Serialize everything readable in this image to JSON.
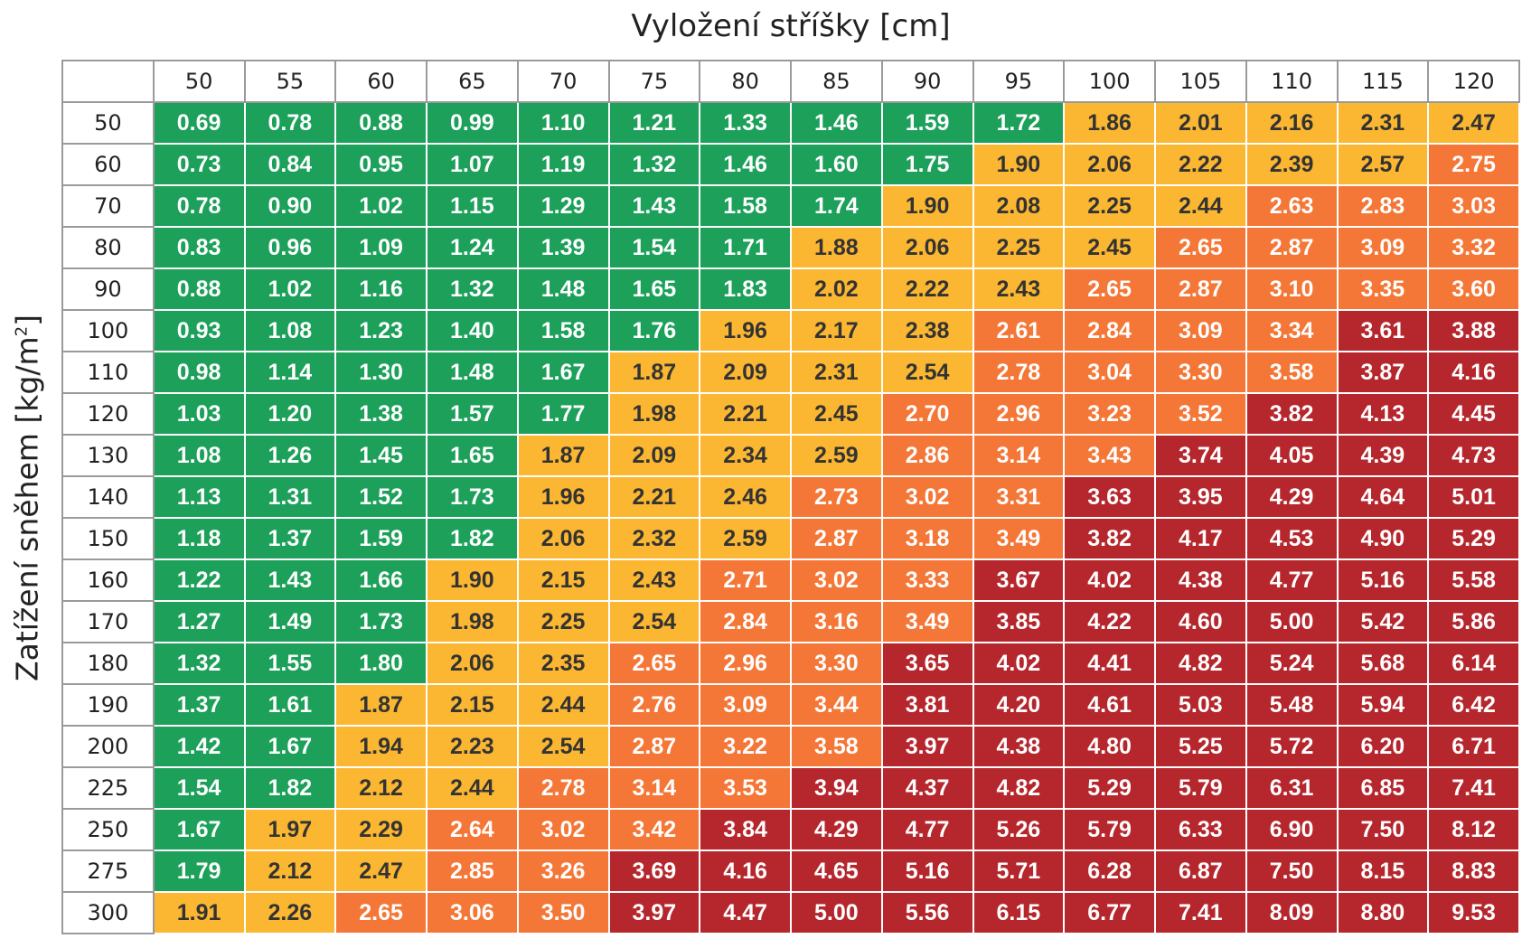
{
  "chart_data": {
    "type": "heatmap",
    "xlabel": "Vyložení stříšky [cm]",
    "ylabel": "Zatížení sněhem [kg/m²]",
    "x": [
      50,
      55,
      60,
      65,
      70,
      75,
      80,
      85,
      90,
      95,
      100,
      105,
      110,
      115,
      120
    ],
    "y": [
      50,
      60,
      70,
      80,
      90,
      100,
      110,
      120,
      130,
      140,
      150,
      160,
      170,
      180,
      190,
      200,
      225,
      250,
      275,
      300
    ],
    "values": [
      [
        "0.69",
        "0.78",
        "0.88",
        "0.99",
        "1.10",
        "1.21",
        "1.33",
        "1.46",
        "1.59",
        "1.72",
        "1.86",
        "2.01",
        "2.16",
        "2.31",
        "2.47"
      ],
      [
        "0.73",
        "0.84",
        "0.95",
        "1.07",
        "1.19",
        "1.32",
        "1.46",
        "1.60",
        "1.75",
        "1.90",
        "2.06",
        "2.22",
        "2.39",
        "2.57",
        "2.75"
      ],
      [
        "0.78",
        "0.90",
        "1.02",
        "1.15",
        "1.29",
        "1.43",
        "1.58",
        "1.74",
        "1.90",
        "2.08",
        "2.25",
        "2.44",
        "2.63",
        "2.83",
        "3.03"
      ],
      [
        "0.83",
        "0.96",
        "1.09",
        "1.24",
        "1.39",
        "1.54",
        "1.71",
        "1.88",
        "2.06",
        "2.25",
        "2.45",
        "2.65",
        "2.87",
        "3.09",
        "3.32"
      ],
      [
        "0.88",
        "1.02",
        "1.16",
        "1.32",
        "1.48",
        "1.65",
        "1.83",
        "2.02",
        "2.22",
        "2.43",
        "2.65",
        "2.87",
        "3.10",
        "3.35",
        "3.60"
      ],
      [
        "0.93",
        "1.08",
        "1.23",
        "1.40",
        "1.58",
        "1.76",
        "1.96",
        "2.17",
        "2.38",
        "2.61",
        "2.84",
        "3.09",
        "3.34",
        "3.61",
        "3.88"
      ],
      [
        "0.98",
        "1.14",
        "1.30",
        "1.48",
        "1.67",
        "1.87",
        "2.09",
        "2.31",
        "2.54",
        "2.78",
        "3.04",
        "3.30",
        "3.58",
        "3.87",
        "4.16"
      ],
      [
        "1.03",
        "1.20",
        "1.38",
        "1.57",
        "1.77",
        "1.98",
        "2.21",
        "2.45",
        "2.70",
        "2.96",
        "3.23",
        "3.52",
        "3.82",
        "4.13",
        "4.45"
      ],
      [
        "1.08",
        "1.26",
        "1.45",
        "1.65",
        "1.87",
        "2.09",
        "2.34",
        "2.59",
        "2.86",
        "3.14",
        "3.43",
        "3.74",
        "4.05",
        "4.39",
        "4.73"
      ],
      [
        "1.13",
        "1.31",
        "1.52",
        "1.73",
        "1.96",
        "2.21",
        "2.46",
        "2.73",
        "3.02",
        "3.31",
        "3.63",
        "3.95",
        "4.29",
        "4.64",
        "5.01"
      ],
      [
        "1.18",
        "1.37",
        "1.59",
        "1.82",
        "2.06",
        "2.32",
        "2.59",
        "2.87",
        "3.18",
        "3.49",
        "3.82",
        "4.17",
        "4.53",
        "4.90",
        "5.29"
      ],
      [
        "1.22",
        "1.43",
        "1.66",
        "1.90",
        "2.15",
        "2.43",
        "2.71",
        "3.02",
        "3.33",
        "3.67",
        "4.02",
        "4.38",
        "4.77",
        "5.16",
        "5.58"
      ],
      [
        "1.27",
        "1.49",
        "1.73",
        "1.98",
        "2.25",
        "2.54",
        "2.84",
        "3.16",
        "3.49",
        "3.85",
        "4.22",
        "4.60",
        "5.00",
        "5.42",
        "5.86"
      ],
      [
        "1.32",
        "1.55",
        "1.80",
        "2.06",
        "2.35",
        "2.65",
        "2.96",
        "3.30",
        "3.65",
        "4.02",
        "4.41",
        "4.82",
        "5.24",
        "5.68",
        "6.14"
      ],
      [
        "1.37",
        "1.61",
        "1.87",
        "2.15",
        "2.44",
        "2.76",
        "3.09",
        "3.44",
        "3.81",
        "4.20",
        "4.61",
        "5.03",
        "5.48",
        "5.94",
        "6.42"
      ],
      [
        "1.42",
        "1.67",
        "1.94",
        "2.23",
        "2.54",
        "2.87",
        "3.22",
        "3.58",
        "3.97",
        "4.38",
        "4.80",
        "5.25",
        "5.72",
        "6.20",
        "6.71"
      ],
      [
        "1.54",
        "1.82",
        "2.12",
        "2.44",
        "2.78",
        "3.14",
        "3.53",
        "3.94",
        "4.37",
        "4.82",
        "5.29",
        "5.79",
        "6.31",
        "6.85",
        "7.41"
      ],
      [
        "1.67",
        "1.97",
        "2.29",
        "2.64",
        "3.02",
        "3.42",
        "3.84",
        "4.29",
        "4.77",
        "5.26",
        "5.79",
        "6.33",
        "6.90",
        "7.50",
        "8.12"
      ],
      [
        "1.79",
        "2.12",
        "2.47",
        "2.85",
        "3.26",
        "3.69",
        "4.16",
        "4.65",
        "5.16",
        "5.71",
        "6.28",
        "6.87",
        "7.50",
        "8.15",
        "8.83"
      ],
      [
        "1.91",
        "2.26",
        "2.65",
        "3.06",
        "3.50",
        "3.97",
        "4.47",
        "5.00",
        "5.56",
        "6.15",
        "6.77",
        "7.41",
        "8.09",
        "8.80",
        "9.53"
      ]
    ],
    "color_bins": [
      {
        "max": 1.85,
        "color": "#1ca05a"
      },
      {
        "max": 2.6,
        "color": "#fbb731"
      },
      {
        "max": 3.6,
        "color": "#f47737"
      },
      {
        "max": 99,
        "color": "#b5272d"
      }
    ],
    "text_colors": {
      "on_dark": "#ffffff",
      "on_light": "#333333"
    },
    "grid": true
  }
}
